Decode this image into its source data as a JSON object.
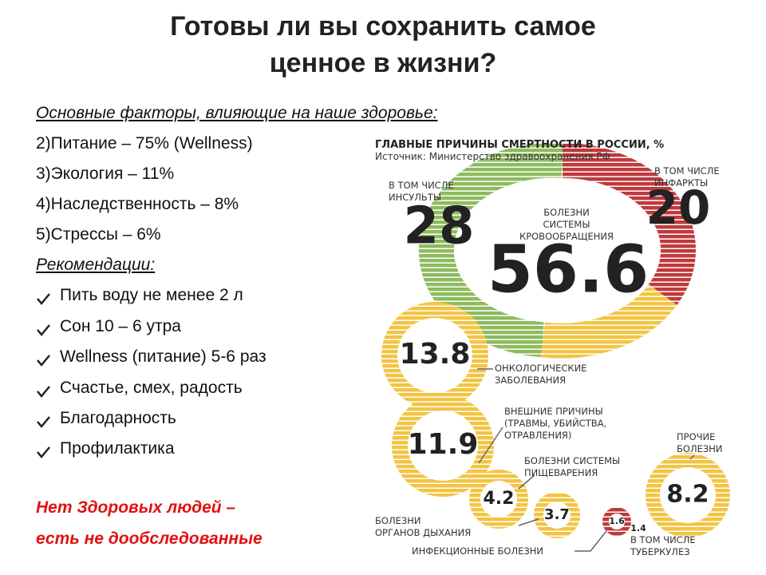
{
  "title": [
    "Готовы ли вы сохранить самое",
    "ценное в жизни?"
  ],
  "factors": {
    "heading": "Основные факторы, влияющие на наше здоровье:",
    "items": [
      "2)Питание – 75% (Wellness)",
      "3)Экология – 11%",
      "4)Наследственность – 8%",
      "5)Стрессы – 6%"
    ]
  },
  "recommendations": {
    "heading": "Рекомендации: ",
    "items": [
      "Пить воду не менее 2 л",
      "Сон 10 – 6 утра",
      "Wellness (питание) 5-6 раз",
      "Счастье, смех, радость",
      "Благодарность",
      "Профилактика"
    ]
  },
  "conclusion": [
    "Нет Здоровых людей –",
    "есть не дообследованные"
  ],
  "infographic": {
    "title": "ГЛАВНЫЕ ПРИЧИНЫ СМЕРТНОСТИ В РОССИИ, %",
    "source": "Источник: Министерство здравоохранения РФ",
    "circulatory": {
      "label": [
        "БОЛЕЗНИ",
        "СИСТЕМЫ",
        "КРОВООБРАЩЕНИЯ"
      ],
      "value": "56.6"
    },
    "strokes": {
      "label": [
        "В ТОМ ЧИСЛЕ",
        "ИНСУЛЬТЫ"
      ],
      "value": "28"
    },
    "infarcts": {
      "label": [
        "В ТОМ ЧИСЛЕ",
        "ИНФАРКТЫ"
      ],
      "value": "20"
    },
    "oncology": {
      "label": [
        "ОНКОЛОГИЧЕСКИЕ",
        "ЗАБОЛЕВАНИЯ"
      ],
      "value": "13.8"
    },
    "external": {
      "label": [
        "ВНЕШНИЕ ПРИЧИНЫ",
        "(ТРАВМЫ, УБИЙСТВА,",
        "ОТРАВЛЕНИЯ)"
      ],
      "value": "11.9"
    },
    "digestive": {
      "label": [
        "БОЛЕЗНИ СИСТЕМЫ",
        "ПИЩЕВАРЕНИЯ"
      ],
      "value": "4.2"
    },
    "respiratory": {
      "label": [
        "БОЛЕЗНИ",
        "ОРГАНОВ ДЫХАНИЯ"
      ],
      "value": "3.7"
    },
    "infectious": {
      "label": [
        "ИНФЕКЦИОННЫЕ БОЛЕЗНИ"
      ],
      "value": "1.6"
    },
    "tuberculosis": {
      "label": [
        "В ТОМ ЧИСЛЕ",
        "ТУБЕРКУЛЕЗ"
      ],
      "value": "1.4"
    },
    "other": {
      "label": [
        "ПРОЧИЕ",
        "БОЛЕЗНИ"
      ],
      "value": "8.2"
    }
  }
}
